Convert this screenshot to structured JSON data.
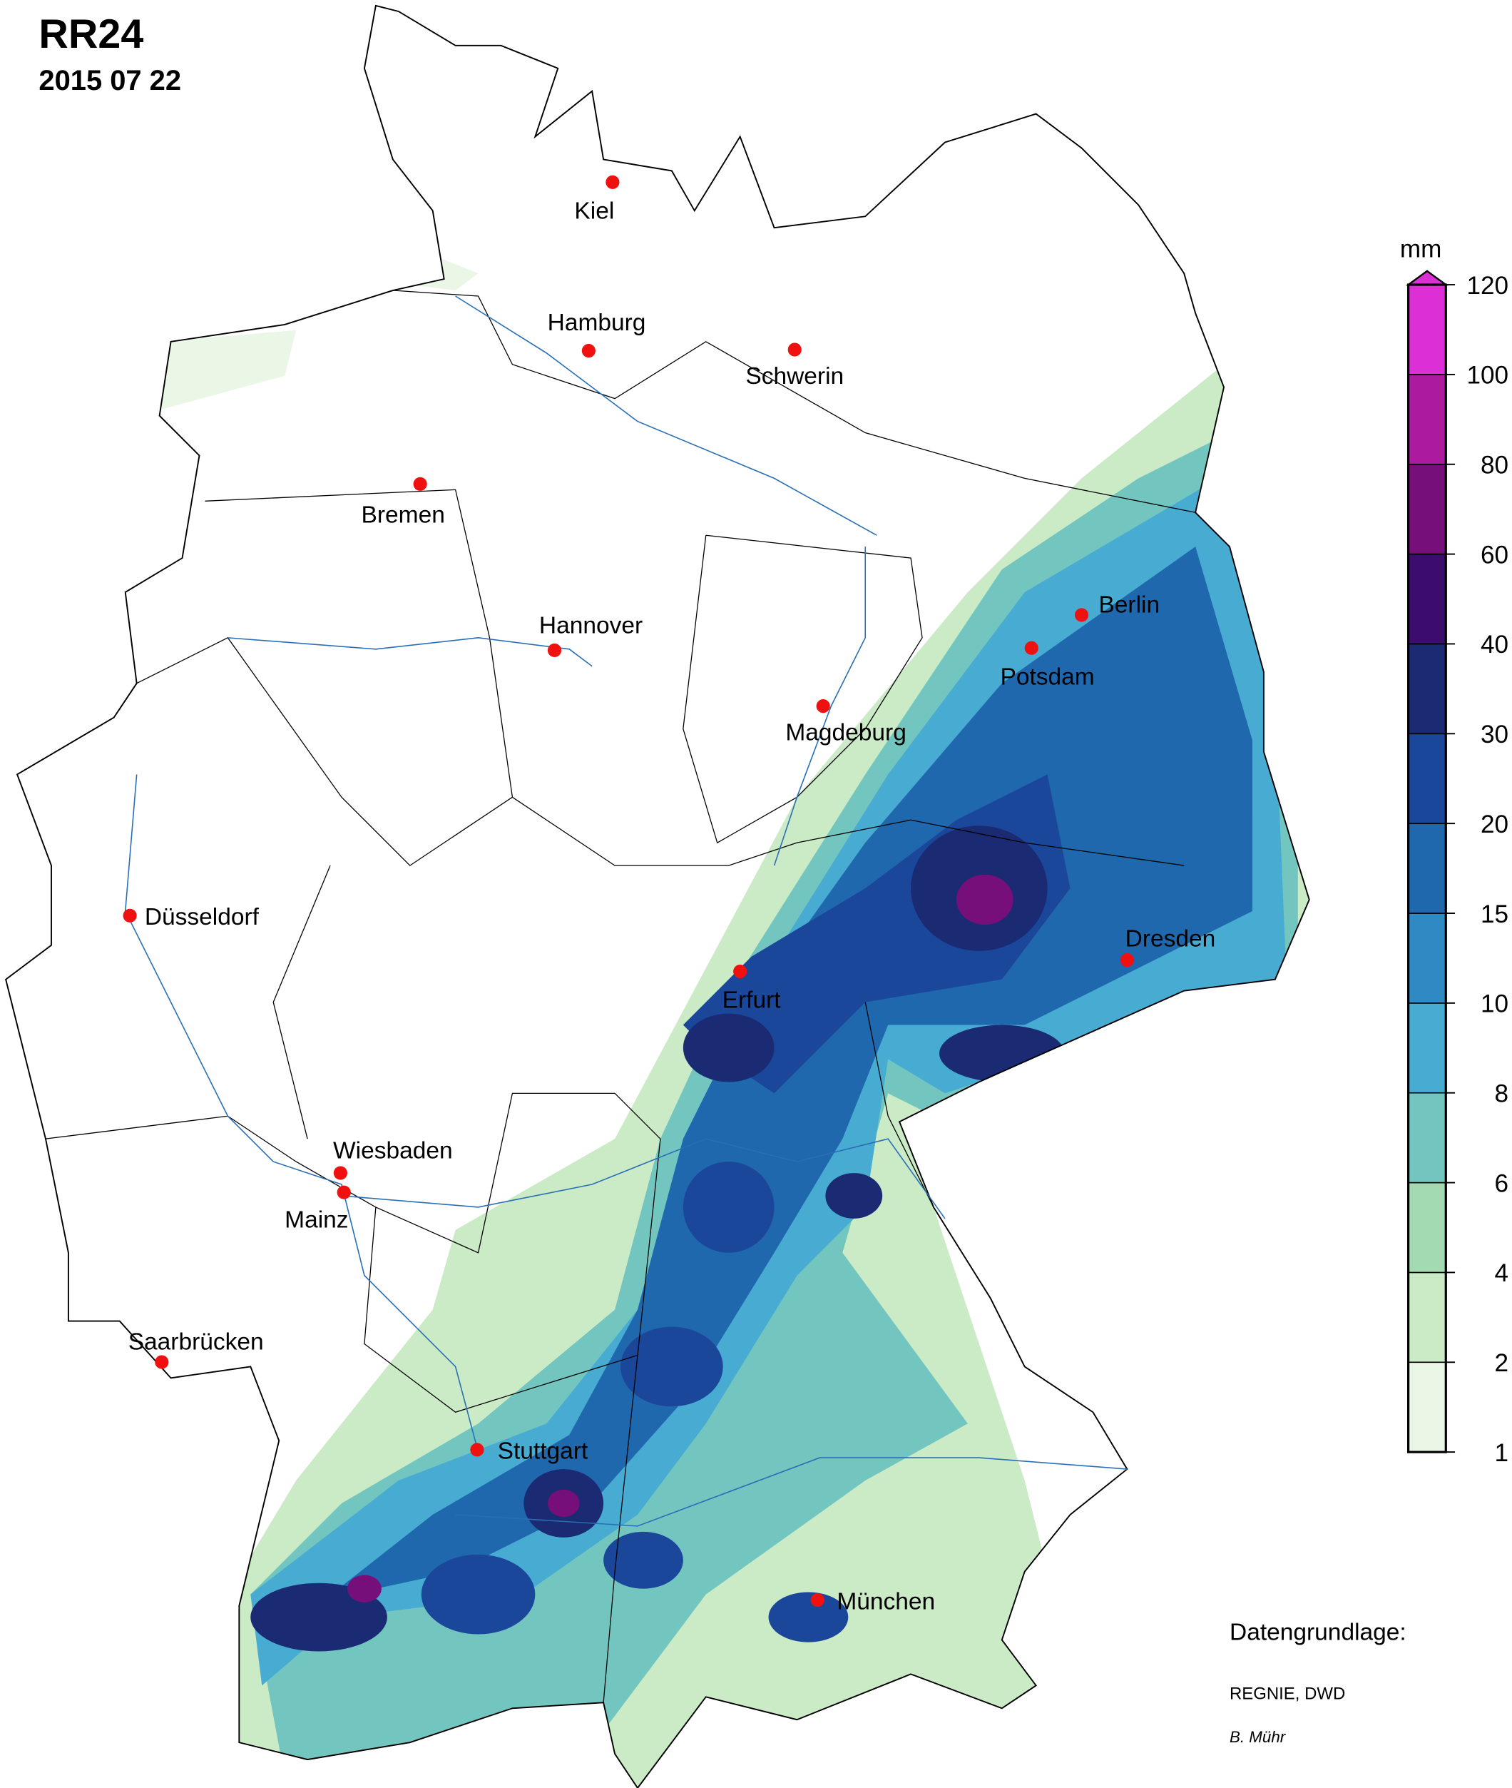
{
  "header": {
    "title": "RR24",
    "date": "2015 07 22"
  },
  "cities": [
    {
      "label": "Kiel"
    },
    {
      "label": "Hamburg"
    },
    {
      "label": "Schwerin"
    },
    {
      "label": "Bremen"
    },
    {
      "label": "Hannover"
    },
    {
      "label": "Magdeburg"
    },
    {
      "label": "Berlin"
    },
    {
      "label": "Potsdam"
    },
    {
      "label": "Düsseldorf"
    },
    {
      "label": "Dresden"
    },
    {
      "label": "Erfurt"
    },
    {
      "label": "Wiesbaden"
    },
    {
      "label": "Mainz"
    },
    {
      "label": "Saarbrücken"
    },
    {
      "label": "Stuttgart"
    },
    {
      "label": "München"
    }
  ],
  "legend": {
    "unit": "mm",
    "levels": [
      1,
      2,
      4,
      6,
      8,
      10,
      15,
      20,
      30,
      40,
      60,
      80,
      100,
      120
    ],
    "colors": [
      "#eaf6e6",
      "#cbeac6",
      "#a4dab2",
      "#72c6bf",
      "#47abd2",
      "#2f8ac3",
      "#1f68ae",
      "#1b479a",
      "#1a2a73",
      "#3c0d6c",
      "#760f79",
      "#ac1a9f",
      "#dc30d6"
    ]
  },
  "credits": {
    "source_heading": "Datengrundlage:",
    "source": "REGNIE, DWD",
    "author": "B. Mühr"
  }
}
